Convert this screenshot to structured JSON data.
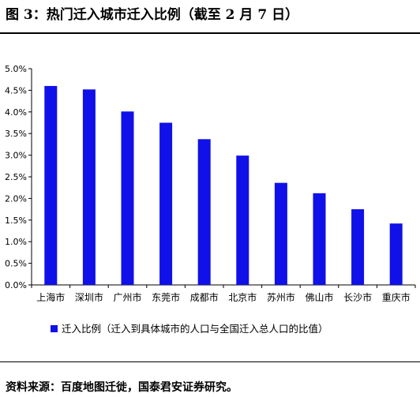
{
  "figure": {
    "title": "图 3：热门迁入城市迁入比例（截至 2 月 7 日）",
    "source": "资料来源：百度地图迁徙，国泰君安证券研究。"
  },
  "chart_data": {
    "type": "bar",
    "categories": [
      "上海市",
      "深圳市",
      "广州市",
      "东莞市",
      "成都市",
      "北京市",
      "苏州市",
      "佛山市",
      "长沙市",
      "重庆市"
    ],
    "series": [
      {
        "name": "迁入比例（迁入到具体城市的人口与全国迁入总人口的比值）",
        "values": [
          4.6,
          4.52,
          4.01,
          3.75,
          3.37,
          2.99,
          2.36,
          2.12,
          1.75,
          1.42
        ]
      }
    ],
    "value_unit": "%",
    "ylim": [
      0,
      5
    ],
    "yticks": [
      "0.0%",
      "0.5%",
      "1.0%",
      "1.5%",
      "2.0%",
      "2.5%",
      "3.0%",
      "3.5%",
      "4.0%",
      "4.5%",
      "5.0%"
    ],
    "title": "",
    "xlabel": "",
    "ylabel": "",
    "grid": false,
    "legend": "bottom",
    "bar_color": "#1010e8"
  }
}
